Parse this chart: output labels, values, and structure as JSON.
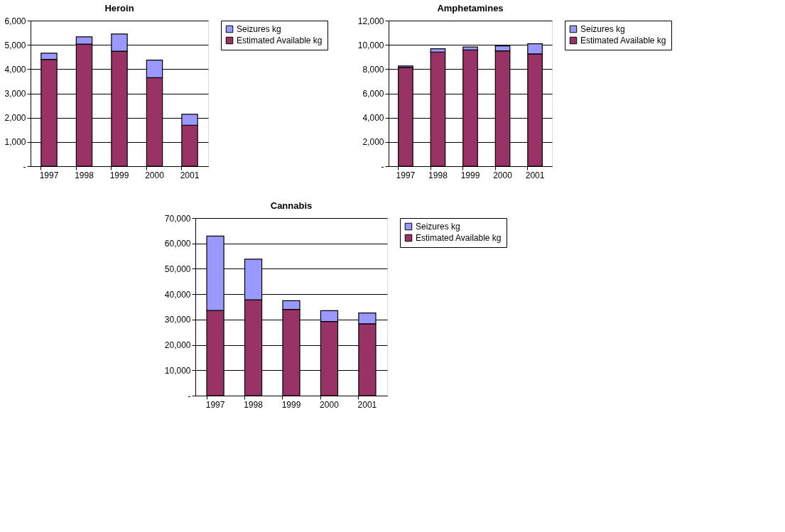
{
  "chart_data": [
    {
      "type": "bar",
      "title": "Heroin",
      "stacked": true,
      "categories": [
        "1997",
        "1998",
        "1999",
        "2000",
        "2001"
      ],
      "series": [
        {
          "name": "Estimated Available kg",
          "color": "#993366",
          "values": [
            4400,
            5030,
            4740,
            3650,
            1690
          ]
        },
        {
          "name": "Seizures kg",
          "color": "#9999ff",
          "values": [
            260,
            300,
            710,
            720,
            450
          ]
        }
      ],
      "ylim": [
        0,
        6000
      ],
      "yticks": [
        {
          "value": 0,
          "label": "-"
        },
        {
          "value": 1000,
          "label": "1,000"
        },
        {
          "value": 2000,
          "label": "2,000"
        },
        {
          "value": 3000,
          "label": "3,000"
        },
        {
          "value": 4000,
          "label": "4,000"
        },
        {
          "value": 5000,
          "label": "5,000"
        },
        {
          "value": 6000,
          "label": "6,000"
        }
      ],
      "grid": "y",
      "legend": "right"
    },
    {
      "type": "bar",
      "title": "Amphetamines",
      "stacked": true,
      "categories": [
        "1997",
        "1998",
        "1999",
        "2000",
        "2001"
      ],
      "series": [
        {
          "name": "Estimated Available kg",
          "color": "#993366",
          "values": [
            8140,
            9410,
            9580,
            9510,
            9260
          ]
        },
        {
          "name": "Seizures kg",
          "color": "#9999ff",
          "values": [
            120,
            270,
            250,
            410,
            830
          ]
        }
      ],
      "ylim": [
        0,
        12000
      ],
      "yticks": [
        {
          "value": 0,
          "label": "-"
        },
        {
          "value": 2000,
          "label": "2,000"
        },
        {
          "value": 4000,
          "label": "4,000"
        },
        {
          "value": 6000,
          "label": "6,000"
        },
        {
          "value": 8000,
          "label": "8,000"
        },
        {
          "value": 10000,
          "label": "10,000"
        },
        {
          "value": 12000,
          "label": "12,000"
        }
      ],
      "grid": "y",
      "legend": "right"
    },
    {
      "type": "bar",
      "title": "Cannabis",
      "stacked": true,
      "categories": [
        "1997",
        "1998",
        "1999",
        "2000",
        "2001"
      ],
      "series": [
        {
          "name": "Estimated Available kg",
          "color": "#993366",
          "values": [
            33600,
            37800,
            34000,
            29200,
            28300
          ]
        },
        {
          "name": "Seizures kg",
          "color": "#9999ff",
          "values": [
            29300,
            16000,
            3400,
            4300,
            4300
          ]
        }
      ],
      "ylim": [
        0,
        70000
      ],
      "yticks": [
        {
          "value": 0,
          "label": "-"
        },
        {
          "value": 10000,
          "label": "10,000"
        },
        {
          "value": 20000,
          "label": "20,000"
        },
        {
          "value": 30000,
          "label": "30,000"
        },
        {
          "value": 40000,
          "label": "40,000"
        },
        {
          "value": 50000,
          "label": "50,000"
        },
        {
          "value": 60000,
          "label": "60,000"
        },
        {
          "value": 70000,
          "label": "70,000"
        }
      ],
      "grid": "y",
      "legend": "right"
    }
  ]
}
